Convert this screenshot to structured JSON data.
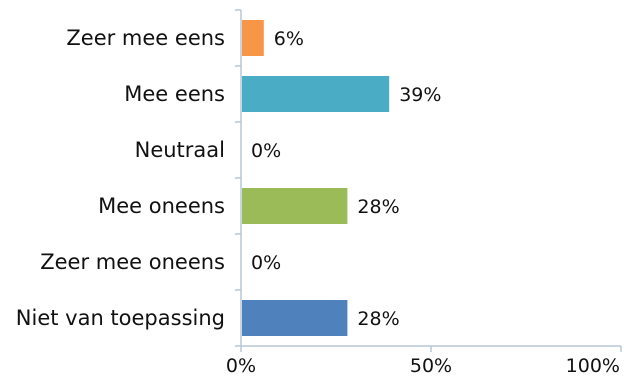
{
  "chart_data": {
    "type": "bar",
    "orientation": "horizontal",
    "categories": [
      "Zeer mee eens",
      "Mee eens",
      "Neutraal",
      "Mee oneens",
      "Zeer mee oneens",
      "Niet van toepassing"
    ],
    "values": [
      6,
      39,
      0,
      28,
      0,
      28
    ],
    "data_labels": [
      "6%",
      "39%",
      "0%",
      "28%",
      "0%",
      "28%"
    ],
    "colors": [
      "#f79646",
      "#4bacc6",
      "#7f7f7f",
      "#9bbb59",
      "#7f7f7f",
      "#4f81bd"
    ],
    "xlim": [
      0,
      100
    ],
    "xticks": [
      0,
      50,
      100
    ],
    "xtick_labels": [
      "0%",
      "50%",
      "100%"
    ],
    "grid": false,
    "title": "",
    "xlabel": "",
    "ylabel": "",
    "axis_color": "#b9c7d8"
  }
}
